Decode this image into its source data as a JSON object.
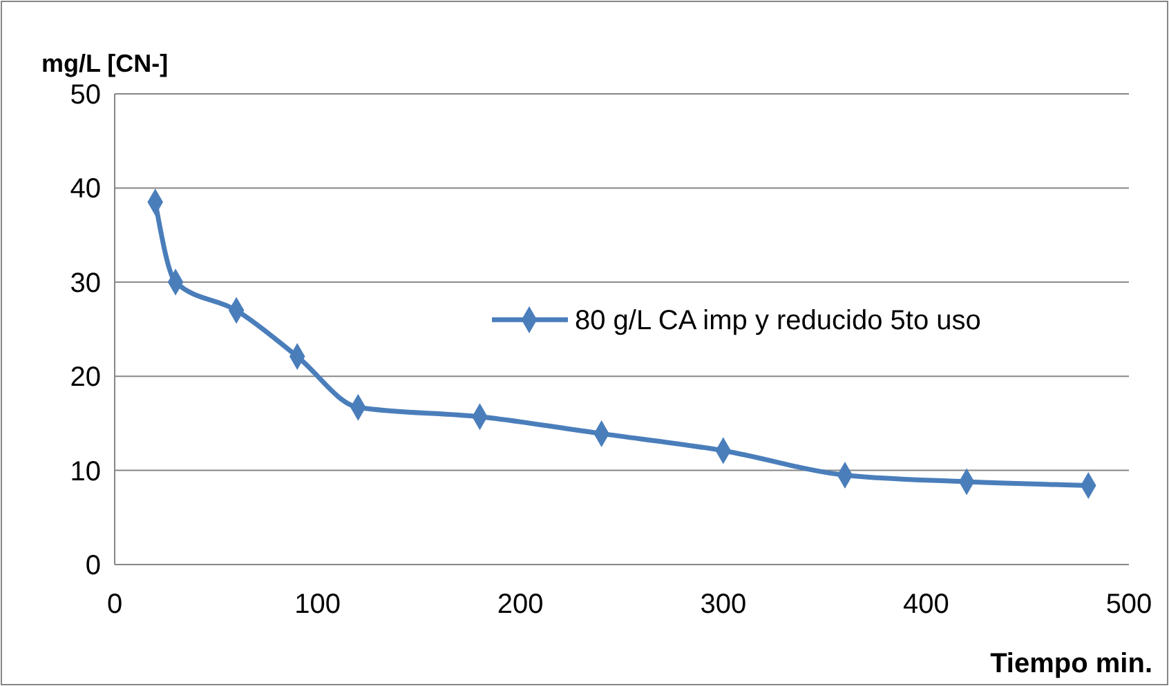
{
  "chart_data": {
    "type": "line",
    "xlabel": "Tiempo min.",
    "ylabel": "mg/L [CN-]",
    "xlim": [
      0,
      500
    ],
    "xticks": [
      0,
      100,
      200,
      300,
      400,
      500
    ],
    "ylim": [
      0,
      50
    ],
    "yticks": [
      0,
      10,
      20,
      30,
      40,
      50
    ],
    "grid": "y",
    "legend": "right",
    "marker": "diamond",
    "line_style": "solid",
    "series": [
      {
        "name": "80 g/L CA imp y reducido 5to uso",
        "color": "#4a7ebb",
        "x": [
          20,
          30,
          60,
          90,
          120,
          180,
          240,
          300,
          360,
          420,
          480
        ],
        "values": [
          38.5,
          30,
          27,
          22.1,
          16.7,
          15.7,
          13.9,
          12.1,
          9.5,
          8.8,
          8.4
        ]
      }
    ]
  }
}
